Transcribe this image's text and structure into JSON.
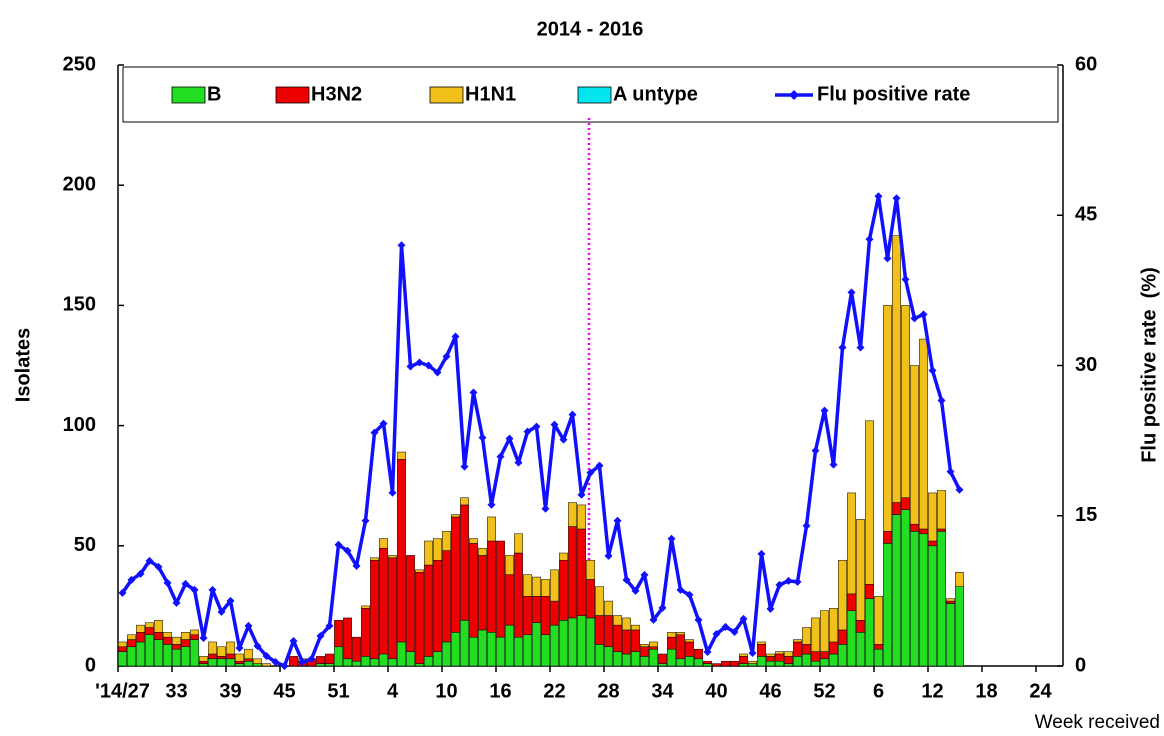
{
  "chart_data": {
    "type": "bar",
    "title": "2014 - 2016",
    "y_label": "Isolates",
    "y2_label": "Flu positive rate  (%)",
    "x_label": "Week received",
    "stacked": true,
    "categories": [
      "'14/27",
      null,
      null,
      null,
      null,
      null,
      "33",
      null,
      null,
      null,
      null,
      null,
      "39",
      null,
      null,
      null,
      null,
      null,
      "45",
      null,
      null,
      null,
      null,
      null,
      "51",
      null,
      null,
      null,
      null,
      null,
      "4",
      null,
      null,
      null,
      null,
      null,
      "10",
      null,
      null,
      null,
      null,
      null,
      "16",
      null,
      null,
      null,
      null,
      null,
      "22",
      null,
      null,
      null,
      null,
      null,
      "28",
      null,
      null,
      null,
      null,
      null,
      "34",
      null,
      null,
      null,
      null,
      null,
      "40",
      null,
      null,
      null,
      null,
      null,
      "46",
      null,
      null,
      null,
      null,
      null,
      "52",
      null,
      null,
      null,
      null,
      null,
      "6",
      null,
      null,
      null,
      null,
      null,
      "12",
      null,
      null,
      null,
      null,
      null,
      "18",
      null,
      null,
      null,
      null,
      null,
      "24",
      null,
      null
    ],
    "ylim": [
      0,
      250
    ],
    "yticks": [
      0,
      50,
      100,
      150,
      200,
      250
    ],
    "y2lim": [
      0,
      60
    ],
    "y2ticks": [
      0,
      15,
      30,
      45,
      60
    ],
    "series": [
      {
        "name": "B",
        "color": "#22dd22",
        "values": [
          6,
          8,
          10,
          13,
          11,
          9,
          7,
          8,
          11,
          1,
          3,
          3,
          3,
          1,
          2,
          1,
          0,
          0,
          0,
          0,
          0,
          0,
          1,
          1,
          8,
          3,
          2,
          4,
          3,
          5,
          3,
          10,
          6,
          1,
          4,
          6,
          10,
          14,
          19,
          12,
          15,
          14,
          12,
          17,
          12,
          13,
          18,
          13,
          17,
          19,
          20,
          21,
          20,
          9,
          8,
          6,
          5,
          6,
          4,
          7,
          1,
          7,
          3,
          4,
          3,
          1,
          0,
          0,
          0,
          1,
          1,
          4,
          2,
          2,
          1,
          4,
          5,
          2,
          3,
          5,
          9,
          23,
          14,
          28,
          7,
          51,
          63,
          65,
          56,
          55,
          50,
          56,
          26,
          33,
          null,
          null,
          null,
          null,
          null,
          null,
          null,
          null,
          null,
          null,
          null
        ]
      },
      {
        "name": "H3N2",
        "color": "#ee0000",
        "values": [
          2,
          3,
          4,
          3,
          3,
          3,
          2,
          3,
          2,
          1,
          2,
          1,
          2,
          1,
          1,
          0,
          0,
          0,
          0,
          4,
          2,
          3,
          3,
          4,
          11,
          17,
          10,
          20,
          41,
          44,
          42,
          76,
          40,
          38,
          38,
          38,
          38,
          48,
          48,
          39,
          31,
          38,
          40,
          21,
          35,
          16,
          11,
          16,
          10,
          25,
          38,
          36,
          16,
          12,
          13,
          11,
          10,
          9,
          4,
          1,
          4,
          5,
          10,
          6,
          4,
          1,
          1,
          2,
          2,
          3,
          0,
          5,
          2,
          3,
          3,
          6,
          4,
          4,
          3,
          5,
          6,
          7,
          5,
          6,
          2,
          5,
          5,
          5,
          3,
          2,
          2,
          1,
          1,
          0,
          null,
          null,
          null,
          null,
          null,
          null,
          null,
          null,
          null,
          null,
          null
        ]
      },
      {
        "name": "H1N1",
        "color": "#f2c01a",
        "values": [
          2,
          2,
          3,
          2,
          5,
          2,
          3,
          3,
          2,
          2,
          5,
          4,
          5,
          3,
          4,
          2,
          1,
          0,
          0,
          0,
          1,
          0,
          0,
          0,
          0,
          0,
          0,
          1,
          1,
          4,
          1,
          3,
          0,
          1,
          10,
          9,
          8,
          1,
          3,
          2,
          3,
          10,
          0,
          8,
          8,
          9,
          8,
          7,
          13,
          3,
          10,
          10,
          8,
          12,
          6,
          4,
          5,
          2,
          1,
          2,
          0,
          2,
          1,
          1,
          0,
          0,
          0,
          0,
          0,
          1,
          1,
          1,
          1,
          1,
          2,
          1,
          7,
          14,
          17,
          14,
          29,
          42,
          42,
          68,
          20,
          94,
          111,
          80,
          66,
          79,
          20,
          16,
          1,
          6,
          null,
          null,
          null,
          null,
          null,
          null,
          null,
          null,
          null,
          null,
          null
        ]
      },
      {
        "name": "A untype",
        "color": "#00e5ee",
        "values": [
          0,
          0,
          0,
          0,
          0,
          0,
          0,
          0,
          0,
          0,
          0,
          0,
          0,
          0,
          0,
          0,
          0,
          0,
          0,
          0,
          0,
          0,
          0,
          0,
          0,
          0,
          0,
          0,
          0,
          0,
          0,
          0,
          0,
          0,
          0,
          0,
          0,
          0,
          0,
          0,
          0,
          0,
          0,
          0,
          0,
          0,
          0,
          0,
          0,
          0,
          0,
          0,
          0,
          0,
          0,
          0,
          0,
          0,
          0,
          0,
          0,
          0,
          0,
          0,
          0,
          0,
          0,
          0,
          0,
          0,
          0,
          0,
          0,
          0,
          0,
          0,
          0,
          0,
          0,
          0,
          0,
          0,
          0,
          0,
          0,
          0,
          0,
          0,
          0,
          0,
          0,
          0,
          0,
          0,
          null,
          null,
          null,
          null,
          null,
          null,
          null,
          null,
          null,
          null,
          null
        ]
      },
      {
        "name": "Flu positive rate",
        "color": "#1010ff",
        "type": "line",
        "axis": "y2",
        "values": [
          7.3,
          8.6,
          9.2,
          10.5,
          9.9,
          8.3,
          6.3,
          8.2,
          7.6,
          2.8,
          7.6,
          5.4,
          6.5,
          1.8,
          4.0,
          2.0,
          1.0,
          0.4,
          0,
          2.5,
          0.4,
          0.7,
          3.0,
          4.0,
          12.1,
          11.5,
          10.0,
          14.5,
          23.3,
          24.2,
          17.3,
          42.0,
          29.9,
          30.3,
          30.0,
          29.3,
          30.9,
          32.9,
          19.9,
          27.3,
          22.8,
          16.1,
          20.9,
          22.7,
          20.3,
          23.4,
          23.9,
          15.7,
          24.1,
          22.6,
          25.1,
          17.1,
          19.3,
          20.0,
          11.0,
          14.5,
          8.6,
          7.5,
          9.1,
          4.6,
          5.8,
          12.7,
          7.6,
          7.1,
          4.6,
          1.4,
          3.2,
          3.9,
          3.4,
          4.7,
          1.3,
          11.2,
          5.7,
          8.1,
          8.5,
          8.4,
          14.0,
          21.5,
          25.5,
          20.1,
          31.8,
          37.3,
          31.8,
          42.6,
          46.9,
          40.7,
          46.7,
          38.6,
          34.7,
          35.1,
          29.5,
          26.5,
          19.4,
          17.6,
          null,
          null,
          null,
          null,
          null,
          null,
          null,
          null,
          null,
          null,
          null
        ]
      }
    ]
  }
}
